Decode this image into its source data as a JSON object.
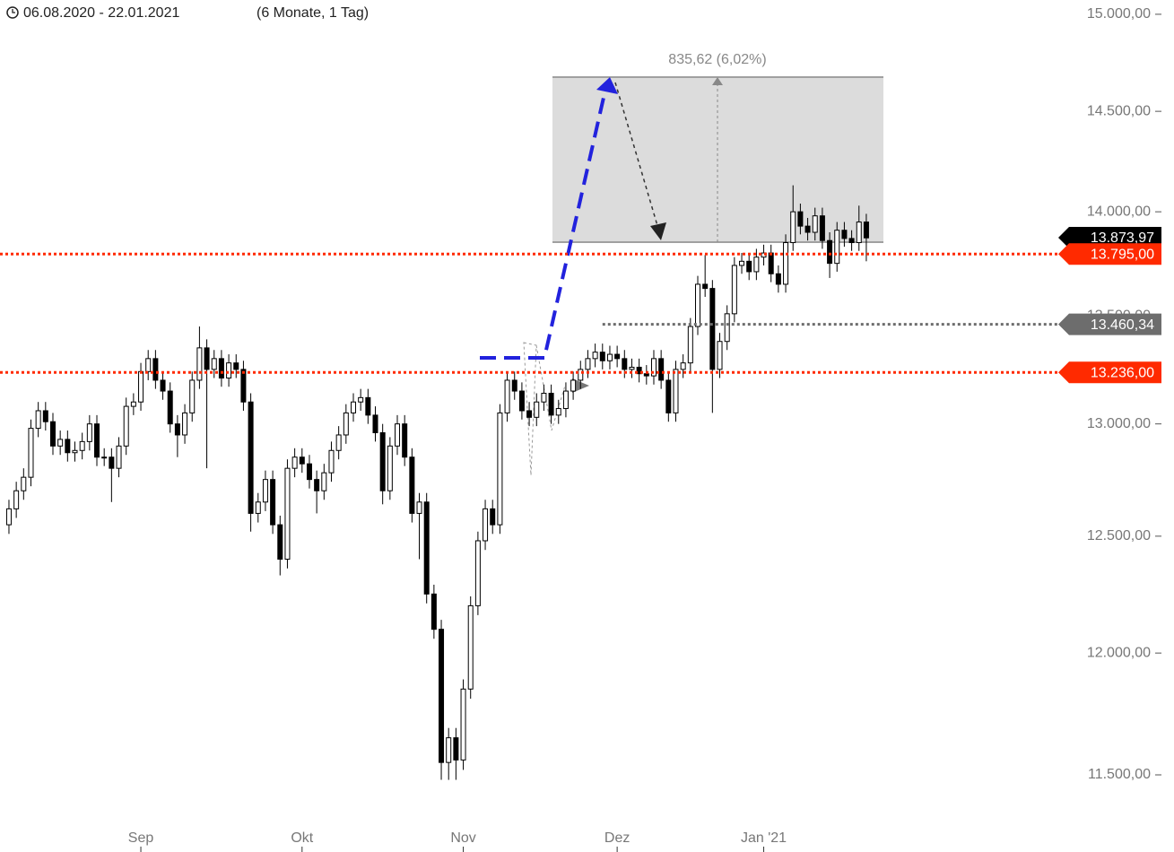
{
  "chart_data": {
    "type": "candlestick",
    "date_range": "06.08.2020 - 22.01.2021",
    "duration": "(6 Monate, 1 Tag)",
    "log_scale": true,
    "ylim": [
      11300,
      15075
    ],
    "yticks": [
      {
        "value": 11500,
        "label": "11.500,00"
      },
      {
        "value": 12000,
        "label": "12.000,00"
      },
      {
        "value": 12500,
        "label": "12.500,00"
      },
      {
        "value": 13000,
        "label": "13.000,00"
      },
      {
        "value": 13500,
        "label": "13.500,00"
      },
      {
        "value": 14000,
        "label": "14.000,00"
      },
      {
        "value": 14500,
        "label": "14.500,00"
      },
      {
        "value": 15000,
        "label": "15.000,00"
      }
    ],
    "xlim": [
      -1.22,
      143.2
    ],
    "xticks": [
      {
        "value": 18,
        "label": "Sep"
      },
      {
        "value": 40,
        "label": "Okt"
      },
      {
        "value": 62,
        "label": "Nov"
      },
      {
        "value": 83,
        "label": "Dez"
      },
      {
        "value": 103,
        "label": "Jan '21"
      }
    ],
    "up_color": "#ffffff",
    "down_color": "#000000",
    "open": [
      12550,
      12620,
      12700,
      12760,
      12980,
      13060,
      13010,
      12900,
      12930,
      12870,
      12880,
      12920,
      13000,
      12850,
      12850,
      12800,
      12900,
      13080,
      13100,
      13240,
      13300,
      13200,
      13150,
      13000,
      12950,
      13050,
      13200,
      13350,
      13250,
      13300,
      13210,
      13280,
      13250,
      13100,
      12600,
      12650,
      12750,
      12550,
      12400,
      12800,
      12850,
      12820,
      12750,
      12700,
      12780,
      12880,
      12950,
      13050,
      13100,
      13120,
      13040,
      12960,
      12700,
      12900,
      13000,
      12850,
      12600,
      12650,
      12250,
      12100,
      11550,
      11650,
      11560,
      11850,
      12200,
      12480,
      12620,
      12550,
      13050,
      13200,
      13150,
      13060,
      13030,
      13100,
      13140,
      13040,
      13070,
      13150,
      13200,
      13250,
      13300,
      13330,
      13290,
      13320,
      13300,
      13250,
      13260,
      13230,
      13220,
      13300,
      13200,
      13050,
      13250,
      13280,
      13450,
      13650,
      13630,
      13250,
      13380,
      13510,
      13740,
      13760,
      13710,
      13780,
      13800,
      13700,
      13650,
      13850,
      14000,
      13930,
      13900,
      13980,
      13860,
      13750,
      13910,
      13870,
      13850,
      13950
    ],
    "high": [
      12660,
      12740,
      12800,
      13020,
      13100,
      13100,
      13050,
      12970,
      12970,
      12920,
      12960,
      13040,
      13040,
      12890,
      12890,
      12940,
      13120,
      13140,
      13280,
      13340,
      13340,
      13240,
      13190,
      13040,
      13090,
      13240,
      13450,
      13390,
      13340,
      13340,
      13320,
      13320,
      13290,
      13140,
      12690,
      12790,
      12790,
      12590,
      12840,
      12890,
      12890,
      12860,
      12790,
      12820,
      12920,
      12990,
      13090,
      13140,
      13160,
      13160,
      13080,
      13000,
      12940,
      13040,
      13040,
      12890,
      12690,
      12690,
      12290,
      12140,
      11690,
      11690,
      11890,
      12240,
      12520,
      12660,
      12660,
      13090,
      13240,
      13240,
      13190,
      13100,
      13140,
      13180,
      13180,
      13110,
      13190,
      13240,
      13290,
      13340,
      13370,
      13370,
      13360,
      13360,
      13340,
      13300,
      13300,
      13270,
      13340,
      13340,
      13240,
      13290,
      13320,
      13490,
      13690,
      13790,
      13670,
      13420,
      13550,
      13780,
      13800,
      13800,
      13820,
      13840,
      13840,
      13740,
      13890,
      14130,
      14040,
      13970,
      14020,
      14020,
      13900,
      13950,
      13950,
      13910,
      14030,
      13990
    ],
    "low": [
      12510,
      12580,
      12660,
      12720,
      12940,
      12970,
      12860,
      12860,
      12830,
      12830,
      12840,
      12880,
      12810,
      12810,
      12650,
      12760,
      12860,
      13040,
      13060,
      13200,
      13160,
      13110,
      12960,
      12850,
      12910,
      13010,
      13160,
      12800,
      13210,
      13170,
      13170,
      13210,
      13060,
      12520,
      12560,
      12610,
      12510,
      12330,
      12360,
      12760,
      12780,
      12710,
      12600,
      12660,
      12740,
      12840,
      12910,
      13010,
      13060,
      13000,
      12920,
      12640,
      12660,
      12860,
      12810,
      12560,
      12400,
      12210,
      12060,
      11480,
      11480,
      11480,
      11520,
      11810,
      12160,
      12440,
      12510,
      12510,
      13010,
      13110,
      13020,
      12990,
      12990,
      13060,
      13000,
      13000,
      13030,
      13110,
      13160,
      13210,
      13260,
      13250,
      13250,
      13260,
      13210,
      13210,
      13190,
      13180,
      13180,
      13160,
      13010,
      13010,
      13210,
      13240,
      13410,
      13590,
      13050,
      13210,
      13340,
      13470,
      13700,
      13670,
      13670,
      13740,
      13660,
      13610,
      13610,
      13810,
      13890,
      13860,
      13860,
      13820,
      13680,
      13710,
      13830,
      13810,
      13810,
      13760
    ],
    "close": [
      12620,
      12700,
      12760,
      12980,
      13060,
      13010,
      12900,
      12930,
      12870,
      12880,
      12920,
      13000,
      12850,
      12850,
      12800,
      12900,
      13080,
      13100,
      13240,
      13300,
      13200,
      13150,
      13000,
      12950,
      13050,
      13200,
      13350,
      13250,
      13300,
      13210,
      13280,
      13250,
      13100,
      12600,
      12650,
      12750,
      12550,
      12400,
      12800,
      12850,
      12820,
      12750,
      12700,
      12780,
      12880,
      12950,
      13050,
      13100,
      13120,
      13040,
      12960,
      12700,
      12900,
      13000,
      12850,
      12600,
      12650,
      12250,
      12100,
      11550,
      11650,
      11560,
      11850,
      12200,
      12480,
      12620,
      12550,
      13050,
      13200,
      13150,
      13060,
      13030,
      13100,
      13140,
      13040,
      13070,
      13150,
      13200,
      13250,
      13300,
      13330,
      13290,
      13320,
      13300,
      13250,
      13260,
      13230,
      13220,
      13300,
      13200,
      13050,
      13250,
      13280,
      13450,
      13650,
      13630,
      13250,
      13380,
      13510,
      13740,
      13760,
      13710,
      13780,
      13800,
      13700,
      13650,
      13850,
      14000,
      13930,
      13900,
      13980,
      13860,
      13750,
      13910,
      13870,
      13850,
      13950,
      13873
    ],
    "price_lines": [
      {
        "value": 13873.97,
        "label": "13.873,97",
        "color": "#000000",
        "style": "none"
      },
      {
        "value": 13795,
        "label": "13.795,00",
        "color": "#ff2a00",
        "style": "dotted",
        "start": -1.22
      },
      {
        "value": 13460.34,
        "label": "13.460,34",
        "color": "#6d6d6d",
        "style": "dotted",
        "start": 81
      },
      {
        "value": 13236,
        "label": "13.236,00",
        "color": "#ff2a00",
        "style": "dotted",
        "start": -1.22
      }
    ],
    "measure_label": "835,62 (6,02%)"
  }
}
